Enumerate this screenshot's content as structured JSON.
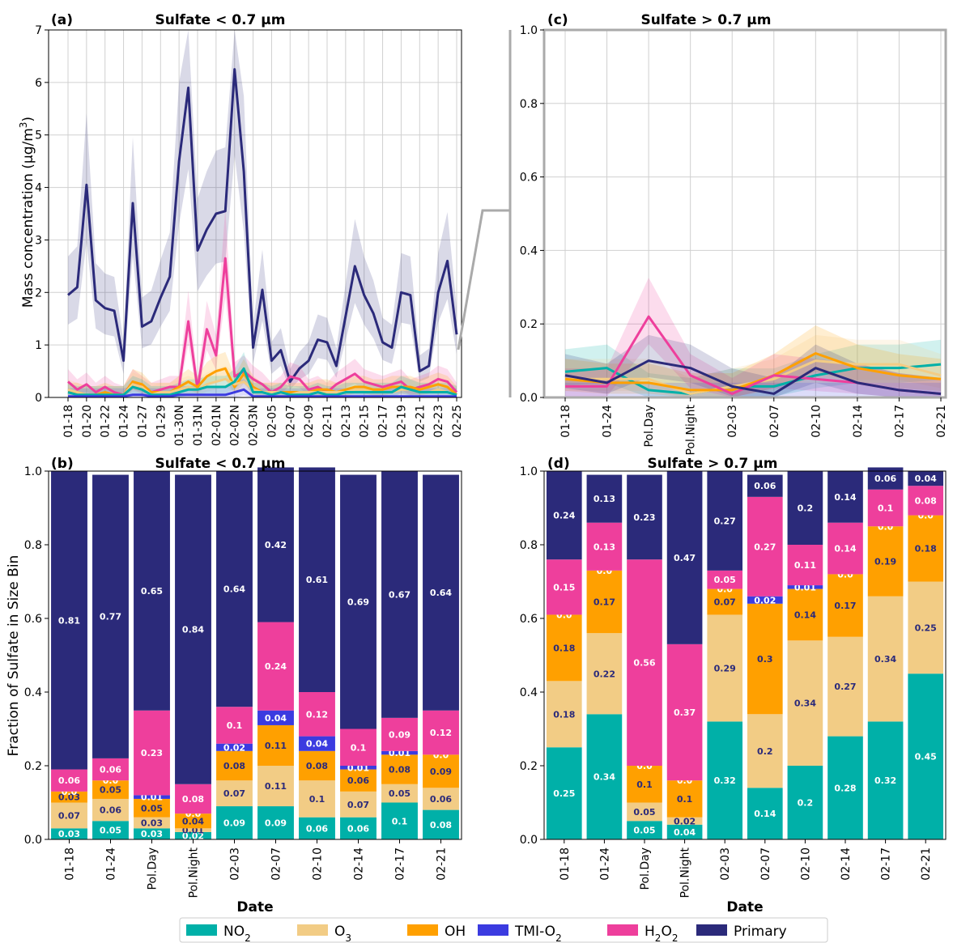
{
  "colors": {
    "NO2": "#00b0a8",
    "O3": "#f2cc85",
    "OH": "#ffa000",
    "TMI-O2": "#3b3be0",
    "H2O2": "#ee3f9c",
    "Primary": "#2b2a7a"
  },
  "legend": {
    "items": [
      {
        "key": "NO2",
        "base": "NO",
        "sub": "2",
        "tail": ""
      },
      {
        "key": "O3",
        "base": "O",
        "sub": "3",
        "tail": ""
      },
      {
        "key": "OH",
        "base": "OH",
        "sub": "",
        "tail": ""
      },
      {
        "key": "TMI-O2",
        "base": "TMI-O",
        "sub": "2",
        "tail": ""
      },
      {
        "key": "H2O2",
        "base": "H",
        "sub": "2",
        "tail": "O2"
      },
      {
        "key": "Primary",
        "base": "Primary",
        "sub": "",
        "tail": ""
      }
    ]
  },
  "chart_data": [
    {
      "panel": "(a)",
      "type": "line",
      "title": "Sulfate < 0.7 µm",
      "ylabel": "Mass concentration (µg/m3)",
      "ylim": [
        0,
        7
      ],
      "yticks": [
        0,
        1,
        2,
        3,
        4,
        5,
        6,
        7
      ],
      "grid": true,
      "x_tick_labels": [
        "01-18",
        "01-20",
        "01-22",
        "01-24",
        "01-27",
        "01-29",
        "01-30N",
        "01-31N",
        "02-01N",
        "02-02N",
        "02-03N",
        "02-05",
        "02-07",
        "02-09",
        "02-11",
        "02-13",
        "02-15",
        "02-17",
        "02-19",
        "02-21",
        "02-23",
        "02-25"
      ],
      "x_tick_index": [
        0,
        2,
        4,
        6,
        8,
        10,
        12,
        14,
        16,
        18,
        20,
        22,
        24,
        26,
        28,
        30,
        32,
        34,
        36,
        38,
        40,
        42
      ],
      "n_points": 43,
      "series": [
        {
          "key": "Primary",
          "values": [
            1.95,
            2.1,
            4.05,
            1.85,
            1.7,
            1.65,
            0.7,
            3.7,
            1.35,
            1.45,
            1.9,
            2.3,
            4.5,
            5.9,
            2.8,
            3.2,
            3.5,
            3.55,
            6.25,
            4.3,
            0.95,
            2.05,
            0.7,
            0.9,
            0.3,
            0.55,
            0.7,
            1.1,
            1.05,
            0.6,
            1.55,
            2.5,
            1.95,
            1.6,
            1.05,
            0.95,
            2.0,
            1.95,
            0.5,
            0.6,
            2.0,
            2.6,
            1.2
          ]
        },
        {
          "key": "H2O2",
          "values": [
            0.3,
            0.15,
            0.25,
            0.1,
            0.2,
            0.1,
            0.05,
            0.3,
            0.2,
            0.1,
            0.15,
            0.2,
            0.2,
            1.45,
            0.15,
            1.3,
            0.8,
            2.65,
            0.4,
            0.5,
            0.35,
            0.25,
            0.1,
            0.2,
            0.4,
            0.35,
            0.15,
            0.2,
            0.1,
            0.25,
            0.35,
            0.45,
            0.3,
            0.25,
            0.2,
            0.25,
            0.3,
            0.15,
            0.2,
            0.25,
            0.35,
            0.3,
            0.1
          ]
        },
        {
          "key": "OH",
          "values": [
            0.1,
            0.1,
            0.05,
            0.05,
            0.1,
            0.05,
            0.05,
            0.3,
            0.25,
            0.1,
            0.1,
            0.1,
            0.2,
            0.3,
            0.2,
            0.4,
            0.5,
            0.55,
            0.2,
            0.45,
            0.2,
            0.1,
            0.1,
            0.1,
            0.1,
            0.1,
            0.1,
            0.15,
            0.15,
            0.1,
            0.15,
            0.2,
            0.2,
            0.15,
            0.15,
            0.2,
            0.2,
            0.2,
            0.15,
            0.2,
            0.25,
            0.2,
            0.05
          ]
        },
        {
          "key": "O3",
          "values": [
            0.15,
            0.1,
            0.05,
            0.05,
            0.05,
            0.05,
            0.05,
            0.25,
            0.2,
            0.05,
            0.1,
            0.1,
            0.15,
            0.2,
            0.15,
            0.25,
            0.3,
            0.35,
            0.25,
            0.3,
            0.15,
            0.1,
            0.1,
            0.1,
            0.05,
            0.1,
            0.1,
            0.1,
            0.1,
            0.1,
            0.1,
            0.15,
            0.15,
            0.1,
            0.1,
            0.1,
            0.15,
            0.15,
            0.1,
            0.1,
            0.15,
            0.1,
            0.05
          ]
        },
        {
          "key": "NO2",
          "values": [
            0.1,
            0.05,
            0.05,
            0.05,
            0.05,
            0.05,
            0.05,
            0.2,
            0.15,
            0.05,
            0.05,
            0.05,
            0.1,
            0.15,
            0.15,
            0.2,
            0.2,
            0.2,
            0.3,
            0.55,
            0.1,
            0.1,
            0.05,
            0.1,
            0.05,
            0.05,
            0.05,
            0.1,
            0.05,
            0.05,
            0.1,
            0.1,
            0.1,
            0.1,
            0.1,
            0.1,
            0.2,
            0.15,
            0.1,
            0.1,
            0.1,
            0.1,
            0.05
          ]
        },
        {
          "key": "TMI-O2",
          "values": [
            0.02,
            0.02,
            0.02,
            0.02,
            0.02,
            0.02,
            0.02,
            0.05,
            0.05,
            0.02,
            0.02,
            0.02,
            0.05,
            0.05,
            0.05,
            0.05,
            0.05,
            0.05,
            0.1,
            0.15,
            0.02,
            0.02,
            0.02,
            0.02,
            0.02,
            0.02,
            0.02,
            0.02,
            0.02,
            0.02,
            0.02,
            0.02,
            0.02,
            0.02,
            0.02,
            0.02,
            0.02,
            0.02,
            0.02,
            0.02,
            0.02,
            0.02,
            0.02
          ]
        }
      ]
    },
    {
      "panel": "(c)",
      "type": "line",
      "title": "Sulfate > 0.7 µm",
      "ylim": [
        0,
        1.0
      ],
      "yticks": [
        0.0,
        0.2,
        0.4,
        0.6,
        0.8,
        1.0
      ],
      "grid": true,
      "categories": [
        "01-18",
        "01-24",
        "Pol.Day",
        "Pol.Night",
        "02-03",
        "02-07",
        "02-10",
        "02-14",
        "02-17",
        "02-21"
      ],
      "series": [
        {
          "key": "NO2",
          "values": [
            0.07,
            0.08,
            0.02,
            0.01,
            0.03,
            0.03,
            0.06,
            0.08,
            0.08,
            0.09
          ]
        },
        {
          "key": "O3",
          "values": [
            0.05,
            0.05,
            0.05,
            0.01,
            0.03,
            0.05,
            0.1,
            0.09,
            0.09,
            0.06
          ]
        },
        {
          "key": "OH",
          "values": [
            0.05,
            0.04,
            0.04,
            0.02,
            0.02,
            0.06,
            0.12,
            0.08,
            0.06,
            0.05
          ]
        },
        {
          "key": "TMI-O2",
          "values": [
            0.0,
            0.0,
            0.0,
            0.0,
            0.0,
            0.0,
            0.0,
            0.0,
            0.0,
            0.0
          ]
        },
        {
          "key": "H2O2",
          "values": [
            0.03,
            0.03,
            0.22,
            0.06,
            0.01,
            0.06,
            0.05,
            0.04,
            0.02,
            0.01
          ]
        },
        {
          "key": "Primary",
          "values": [
            0.06,
            0.04,
            0.1,
            0.08,
            0.03,
            0.01,
            0.08,
            0.04,
            0.02,
            0.01
          ]
        }
      ]
    },
    {
      "panel": "(b)",
      "type": "bar",
      "stacked": true,
      "title": "Sulfate < 0.7 µm",
      "xlabel": "Date",
      "ylabel": "Fraction of Sulfate in Size Bin",
      "ylim": [
        0,
        1.0
      ],
      "yticks": [
        0.0,
        0.2,
        0.4,
        0.6,
        0.8,
        1.0
      ],
      "categories": [
        "01-18",
        "01-24",
        "Pol.Day",
        "Pol.Night",
        "02-03",
        "02-07",
        "02-10",
        "02-14",
        "02-17",
        "02-21"
      ],
      "series": [
        {
          "key": "NO2",
          "values": [
            0.03,
            0.05,
            0.03,
            0.02,
            0.09,
            0.09,
            0.06,
            0.06,
            0.1,
            0.08
          ],
          "labels": [
            "0.03",
            "0.05",
            "0.03",
            "0.02",
            "0.09",
            "0.09",
            "0.06",
            "0.06",
            "0.1",
            "0.08"
          ]
        },
        {
          "key": "O3",
          "values": [
            0.07,
            0.06,
            0.03,
            0.01,
            0.07,
            0.11,
            0.1,
            0.07,
            0.05,
            0.06
          ],
          "labels": [
            "0.07",
            "0.06",
            "0.03",
            "0.01",
            "0.07",
            "0.11",
            "0.1",
            "0.07",
            "0.05",
            "0.06"
          ]
        },
        {
          "key": "OH",
          "values": [
            0.03,
            0.05,
            0.05,
            0.04,
            0.08,
            0.11,
            0.08,
            0.06,
            0.08,
            0.09
          ],
          "labels": [
            "0.03",
            "0.05",
            "0.05",
            "0.04",
            "0.08",
            "0.11",
            "0.08",
            "0.06",
            "0.08",
            "0.09"
          ]
        },
        {
          "key": "TMI-O2",
          "values": [
            0.0,
            0.0,
            0.01,
            0.0,
            0.02,
            0.04,
            0.04,
            0.01,
            0.01,
            0.0
          ],
          "labels": [
            "0.0",
            "0.0",
            "0.01",
            "0.0",
            "0.02",
            "0.04",
            "0.04",
            "0.01",
            "0.01",
            "0.0"
          ]
        },
        {
          "key": "H2O2",
          "values": [
            0.06,
            0.06,
            0.23,
            0.08,
            0.1,
            0.24,
            0.12,
            0.1,
            0.09,
            0.12
          ],
          "labels": [
            "0.06",
            "0.06",
            "0.23",
            "0.08",
            "0.1",
            "0.24",
            "0.12",
            "0.1",
            "0.09",
            "0.12"
          ]
        },
        {
          "key": "Primary",
          "values": [
            0.81,
            0.77,
            0.65,
            0.84,
            0.64,
            0.42,
            0.61,
            0.69,
            0.67,
            0.64
          ],
          "labels": [
            "0.81",
            "0.77",
            "0.65",
            "0.84",
            "0.64",
            "0.42",
            "0.61",
            "0.69",
            "0.67",
            "0.64"
          ]
        }
      ]
    },
    {
      "panel": "(d)",
      "type": "bar",
      "stacked": true,
      "title": "Sulfate > 0.7 µm",
      "xlabel": "Date",
      "ylim": [
        0,
        1.0
      ],
      "yticks": [
        0.0,
        0.2,
        0.4,
        0.6,
        0.8,
        1.0
      ],
      "categories": [
        "01-18",
        "01-24",
        "Pol.Day",
        "Pol.Night",
        "02-03",
        "02-07",
        "02-10",
        "02-14",
        "02-17",
        "02-21"
      ],
      "series": [
        {
          "key": "NO2",
          "values": [
            0.25,
            0.34,
            0.05,
            0.04,
            0.32,
            0.14,
            0.2,
            0.28,
            0.32,
            0.45
          ],
          "labels": [
            "0.25",
            "0.34",
            "0.05",
            "0.04",
            "0.32",
            "0.14",
            "0.2",
            "0.28",
            "0.32",
            "0.45"
          ]
        },
        {
          "key": "O3",
          "values": [
            0.18,
            0.22,
            0.05,
            0.02,
            0.29,
            0.2,
            0.34,
            0.27,
            0.34,
            0.25
          ],
          "labels": [
            "0.18",
            "0.22",
            "0.05",
            "0.02",
            "0.29",
            "0.2",
            "0.34",
            "0.27",
            "0.34",
            "0.25"
          ]
        },
        {
          "key": "OH",
          "values": [
            0.18,
            0.17,
            0.1,
            0.1,
            0.07,
            0.3,
            0.14,
            0.17,
            0.19,
            0.18
          ],
          "labels": [
            "0.18",
            "0.17",
            "0.1",
            "0.1",
            "0.07",
            "0.3",
            "0.14",
            "0.17",
            "0.19",
            "0.18"
          ]
        },
        {
          "key": "TMI-O2",
          "values": [
            0.0,
            0.0,
            0.0,
            0.0,
            0.0,
            0.02,
            0.01,
            0.0,
            0.0,
            0.0
          ],
          "labels": [
            "0.0",
            "0.0",
            "0.0",
            "0.0",
            "0.0",
            "0.02",
            "0.01",
            "0.0",
            "0.0",
            "0.0"
          ]
        },
        {
          "key": "H2O2",
          "values": [
            0.15,
            0.13,
            0.56,
            0.37,
            0.05,
            0.27,
            0.11,
            0.14,
            0.1,
            0.08
          ],
          "labels": [
            "0.15",
            "0.13",
            "0.56",
            "0.37",
            "0.05",
            "0.27",
            "0.11",
            "0.14",
            "0.1",
            "0.08"
          ]
        },
        {
          "key": "Primary",
          "values": [
            0.24,
            0.13,
            0.23,
            0.47,
            0.27,
            0.06,
            0.2,
            0.14,
            0.06,
            0.04
          ],
          "labels": [
            "0.24",
            "0.13",
            "0.23",
            "0.47",
            "0.27",
            "0.06",
            "0.2",
            "0.14",
            "0.06",
            "0.04"
          ]
        }
      ]
    }
  ]
}
